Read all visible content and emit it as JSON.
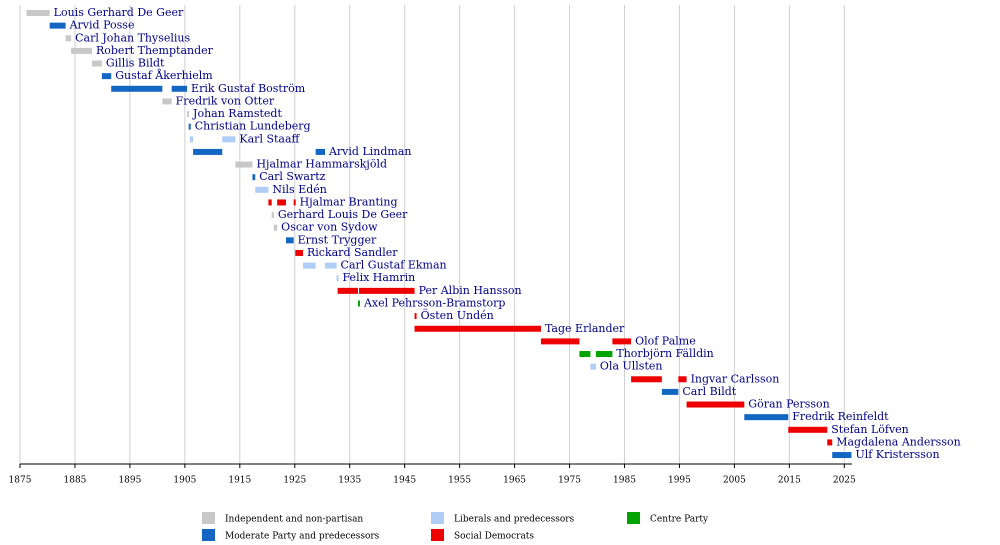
{
  "chart_data": {
    "type": "timeline",
    "xlim": [
      1875,
      2026.4
    ],
    "xticks": [
      1875,
      1885,
      1895,
      1905,
      1915,
      1925,
      1935,
      1945,
      1955,
      1965,
      1975,
      1985,
      1995,
      2005,
      2015,
      2025
    ],
    "grid": true,
    "legend": [
      {
        "name": "Independent and non-partisan",
        "color": "#c8c8c8"
      },
      {
        "name": "Moderate Party and predecessors",
        "color": "#1466c3"
      },
      {
        "name": "Liberals and predecessors",
        "color": "#b0cdf5"
      },
      {
        "name": "Social Democrats",
        "color": "#ee0000"
      },
      {
        "name": "Centre Party",
        "color": "#00a300"
      }
    ],
    "rows": [
      {
        "label": "Louis Gerhard De Geer",
        "terms": [
          {
            "start": 1876.2,
            "end": 1880.4,
            "party": 0
          }
        ]
      },
      {
        "label": "Arvid Posse",
        "terms": [
          {
            "start": 1880.4,
            "end": 1883.3,
            "party": 1
          }
        ]
      },
      {
        "label": "Carl Johan Thyselius",
        "terms": [
          {
            "start": 1883.3,
            "end": 1884.3,
            "party": 0
          }
        ]
      },
      {
        "label": "Robert Themptander",
        "terms": [
          {
            "start": 1884.3,
            "end": 1888.1,
            "party": 0
          }
        ]
      },
      {
        "label": "Gillis Bildt",
        "terms": [
          {
            "start": 1888.1,
            "end": 1889.9,
            "party": 0
          }
        ]
      },
      {
        "label": "Gustaf Åkerhielm",
        "terms": [
          {
            "start": 1889.9,
            "end": 1891.6,
            "party": 1
          }
        ]
      },
      {
        "label": "Erik Gustaf Boström",
        "terms": [
          {
            "start": 1891.6,
            "end": 1900.9,
            "party": 1
          },
          {
            "start": 1902.6,
            "end": 1905.4,
            "party": 1
          }
        ]
      },
      {
        "label": "Fredrik von Otter",
        "terms": [
          {
            "start": 1900.9,
            "end": 1902.6,
            "party": 0
          }
        ]
      },
      {
        "label": "Johan Ramstedt",
        "terms": [
          {
            "start": 1905.4,
            "end": 1905.7,
            "party": 0
          }
        ]
      },
      {
        "label": "Christian Lundeberg",
        "terms": [
          {
            "start": 1905.7,
            "end": 1905.9,
            "party": 1
          }
        ]
      },
      {
        "label": "Karl Staaff",
        "terms": [
          {
            "start": 1905.9,
            "end": 1906.5,
            "party": 2
          },
          {
            "start": 1911.8,
            "end": 1914.2,
            "party": 2
          }
        ]
      },
      {
        "label": "Arvid Lindman",
        "terms": [
          {
            "start": 1906.5,
            "end": 1911.8,
            "party": 1
          },
          {
            "start": 1928.8,
            "end": 1930.5,
            "party": 1
          }
        ]
      },
      {
        "label": "Hjalmar Hammarskjöld",
        "terms": [
          {
            "start": 1914.2,
            "end": 1917.3,
            "party": 0
          }
        ]
      },
      {
        "label": "Carl Swartz",
        "terms": [
          {
            "start": 1917.3,
            "end": 1917.8,
            "party": 1
          }
        ]
      },
      {
        "label": "Nils Edén",
        "terms": [
          {
            "start": 1917.8,
            "end": 1920.2,
            "party": 2
          }
        ]
      },
      {
        "label": "Hjalmar Branting",
        "terms": [
          {
            "start": 1920.2,
            "end": 1920.8,
            "party": 3
          },
          {
            "start": 1921.8,
            "end": 1923.4,
            "party": 3
          },
          {
            "start": 1924.8,
            "end": 1925.1,
            "party": 3
          }
        ]
      },
      {
        "label": "Gerhard Louis De Geer",
        "terms": [
          {
            "start": 1920.8,
            "end": 1921.2,
            "party": 0
          }
        ]
      },
      {
        "label": "Oscar von Sydow",
        "terms": [
          {
            "start": 1921.2,
            "end": 1921.8,
            "party": 0
          }
        ]
      },
      {
        "label": "Ernst Trygger",
        "terms": [
          {
            "start": 1923.4,
            "end": 1924.8,
            "party": 1
          }
        ]
      },
      {
        "label": "Rickard Sandler",
        "terms": [
          {
            "start": 1925.1,
            "end": 1926.5,
            "party": 3
          }
        ]
      },
      {
        "label": "Carl Gustaf Ekman",
        "terms": [
          {
            "start": 1926.5,
            "end": 1928.8,
            "party": 2
          },
          {
            "start": 1930.5,
            "end": 1932.6,
            "party": 2
          }
        ]
      },
      {
        "label": "Felix Hamrin",
        "terms": [
          {
            "start": 1932.6,
            "end": 1932.8,
            "party": 2
          }
        ]
      },
      {
        "label": "Per Albin Hansson",
        "terms": [
          {
            "start": 1932.8,
            "end": 1936.5,
            "party": 3
          },
          {
            "start": 1936.7,
            "end": 1946.8,
            "party": 3
          }
        ]
      },
      {
        "label": "Axel Pehrsson-Bramstorp",
        "terms": [
          {
            "start": 1936.5,
            "end": 1936.7,
            "party": 4
          }
        ]
      },
      {
        "label": "Östen Undén",
        "terms": [
          {
            "start": 1946.8,
            "end": 1946.9,
            "party": 3
          }
        ]
      },
      {
        "label": "Tage Erlander",
        "terms": [
          {
            "start": 1946.8,
            "end": 1969.8,
            "party": 3
          }
        ]
      },
      {
        "label": "Olof Palme",
        "terms": [
          {
            "start": 1969.8,
            "end": 1976.8,
            "party": 3
          },
          {
            "start": 1982.8,
            "end": 1986.2,
            "party": 3
          }
        ]
      },
      {
        "label": "Thorbjörn Fälldin",
        "terms": [
          {
            "start": 1976.8,
            "end": 1978.8,
            "party": 4
          },
          {
            "start": 1979.8,
            "end": 1982.8,
            "party": 4
          }
        ]
      },
      {
        "label": "Ola Ullsten",
        "terms": [
          {
            "start": 1978.8,
            "end": 1979.8,
            "party": 2
          }
        ]
      },
      {
        "label": "Ingvar Carlsson",
        "terms": [
          {
            "start": 1986.2,
            "end": 1991.8,
            "party": 3
          },
          {
            "start": 1994.8,
            "end": 1996.3,
            "party": 3
          }
        ]
      },
      {
        "label": "Carl Bildt",
        "terms": [
          {
            "start": 1991.8,
            "end": 1994.8,
            "party": 1
          }
        ]
      },
      {
        "label": "Göran Persson",
        "terms": [
          {
            "start": 1996.3,
            "end": 2006.8,
            "party": 3
          }
        ]
      },
      {
        "label": "Fredrik Reinfeldt",
        "terms": [
          {
            "start": 2006.8,
            "end": 2014.8,
            "party": 1
          }
        ]
      },
      {
        "label": "Stefan Löfven",
        "terms": [
          {
            "start": 2014.8,
            "end": 2021.9,
            "party": 3
          }
        ]
      },
      {
        "label": "Magdalena Andersson",
        "terms": [
          {
            "start": 2021.9,
            "end": 2022.8,
            "party": 3
          }
        ]
      },
      {
        "label": "Ulf Kristersson",
        "terms": [
          {
            "start": 2022.8,
            "end": 2026.3,
            "party": 1
          }
        ]
      }
    ]
  }
}
